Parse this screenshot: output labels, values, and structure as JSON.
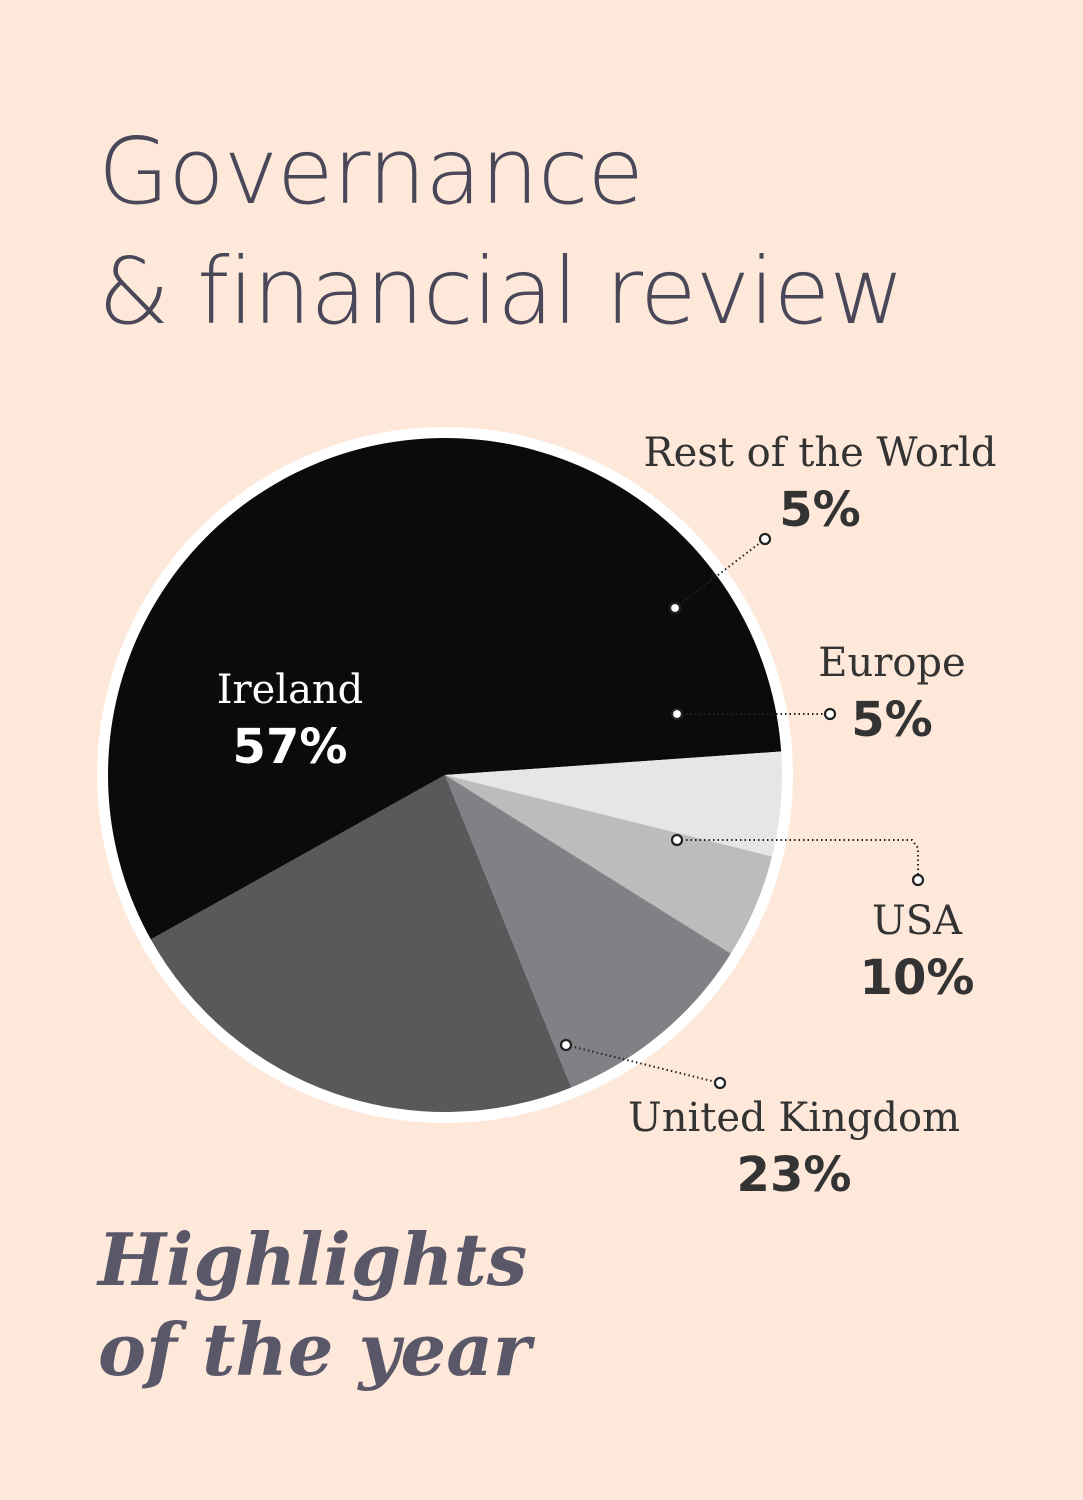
{
  "header": {
    "title_line1": "Governance",
    "title_line2": "& financial review"
  },
  "footer": {
    "subtitle_line1": "Highlights",
    "subtitle_line2": "of the year"
  },
  "chart_data": {
    "type": "pie",
    "title": "",
    "categories": [
      "Ireland",
      "Rest of the World",
      "Europe",
      "USA",
      "United Kingdom"
    ],
    "values": [
      57,
      5,
      5,
      10,
      23
    ],
    "value_labels": [
      "57%",
      "5%",
      "5%",
      "10%",
      "23%"
    ],
    "colors": [
      "#0b0b0b",
      "#e6e6e4",
      "#bcbcbd",
      "#808184",
      "#58595b"
    ],
    "ring_color": "#ffffff",
    "label_color": "#333333",
    "inside_label_color": "#ffffff"
  }
}
